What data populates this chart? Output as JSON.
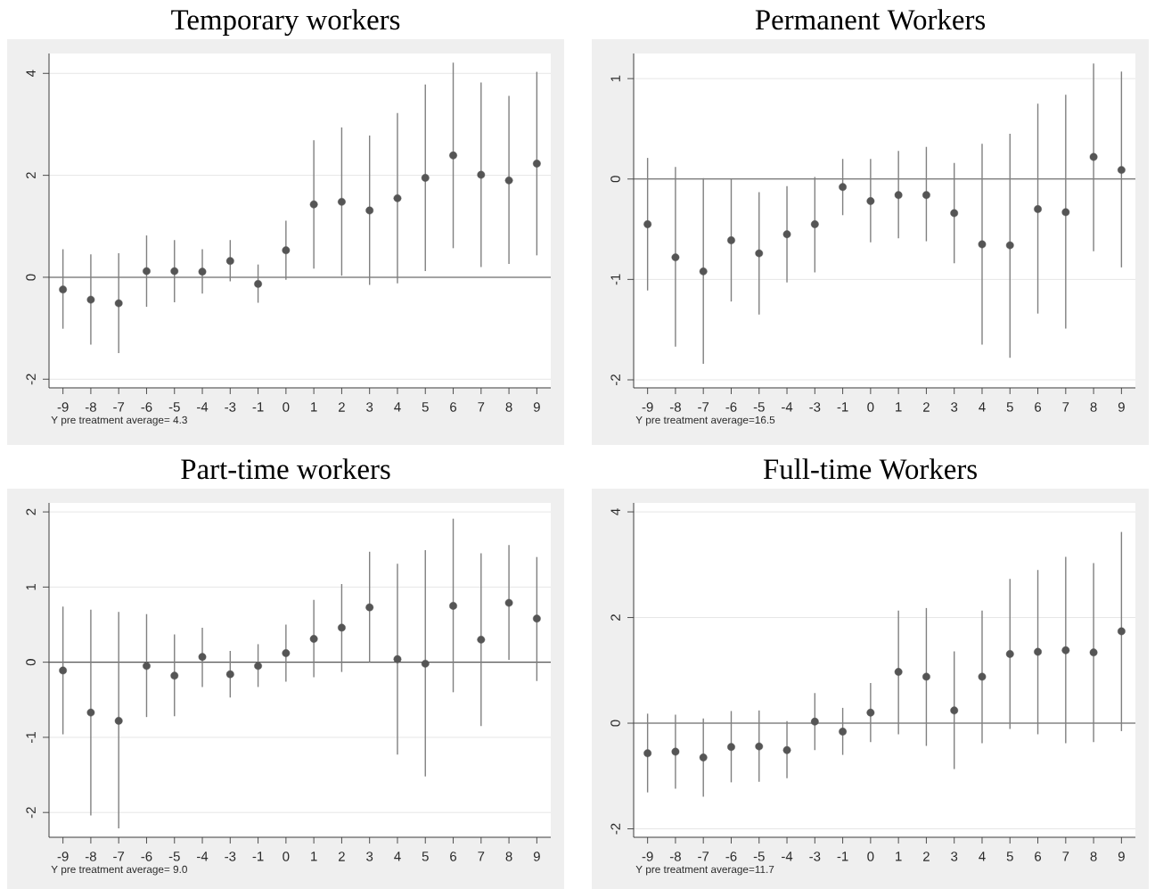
{
  "chart_data": [
    {
      "type": "scatter",
      "title": "Temporary workers",
      "categories": [
        "-9",
        "-8",
        "-7",
        "-6",
        "-5",
        "-4",
        "-3",
        "-1",
        "0",
        "1",
        "2",
        "3",
        "4",
        "5",
        "6",
        "7",
        "8",
        "9"
      ],
      "values": [
        -0.24,
        -0.44,
        -0.51,
        0.12,
        0.12,
        0.11,
        0.32,
        -0.13,
        0.53,
        1.43,
        1.48,
        1.31,
        1.55,
        1.95,
        2.39,
        2.01,
        1.9,
        2.23
      ],
      "errors": [
        [
          -1.01,
          0.55
        ],
        [
          -1.32,
          0.45
        ],
        [
          -1.49,
          0.47
        ],
        [
          -0.58,
          0.82
        ],
        [
          -0.49,
          0.73
        ],
        [
          -0.32,
          0.55
        ],
        [
          -0.08,
          0.73
        ],
        [
          -0.5,
          0.25
        ],
        [
          -0.05,
          1.11
        ],
        [
          0.17,
          2.69
        ],
        [
          0.03,
          2.94
        ],
        [
          -0.15,
          2.78
        ],
        [
          -0.12,
          3.22
        ],
        [
          0.12,
          3.78
        ],
        [
          0.57,
          4.21
        ],
        [
          0.2,
          3.82
        ],
        [
          0.26,
          3.56
        ],
        [
          0.43,
          4.03
        ]
      ],
      "color": "#555555",
      "marker": "circle",
      "ylim": [
        -2.17,
        4.39
      ],
      "yticks": [
        -2,
        0,
        2,
        4
      ],
      "grid": "y",
      "ref_lines": [
        {
          "axis": "y",
          "value": 0,
          "color": "#555555"
        }
      ],
      "annotations": [
        "Y pre treatment average= 4.3"
      ]
    },
    {
      "type": "scatter",
      "title": "Permanent Workers",
      "categories": [
        "-9",
        "-8",
        "-7",
        "-6",
        "-5",
        "-4",
        "-3",
        "-1",
        "0",
        "1",
        "2",
        "3",
        "4",
        "5",
        "6",
        "7",
        "8",
        "9"
      ],
      "values": [
        -0.45,
        -0.78,
        -0.92,
        -0.61,
        -0.74,
        -0.55,
        -0.45,
        -0.08,
        -0.22,
        -0.16,
        -0.16,
        -0.34,
        -0.65,
        -0.66,
        -0.3,
        -0.33,
        0.22,
        0.09
      ],
      "errors": [
        [
          -1.11,
          0.21
        ],
        [
          -1.67,
          0.12
        ],
        [
          -1.84,
          0.01
        ],
        [
          -1.22,
          0.0
        ],
        [
          -1.35,
          -0.13
        ],
        [
          -1.03,
          -0.07
        ],
        [
          -0.93,
          0.02
        ],
        [
          -0.36,
          0.2
        ],
        [
          -0.63,
          0.2
        ],
        [
          -0.59,
          0.28
        ],
        [
          -0.62,
          0.32
        ],
        [
          -0.84,
          0.16
        ],
        [
          -1.65,
          0.35
        ],
        [
          -1.78,
          0.45
        ],
        [
          -1.34,
          0.75
        ],
        [
          -1.49,
          0.84
        ],
        [
          -0.72,
          1.15
        ],
        [
          -0.88,
          1.07
        ]
      ],
      "color": "#555555",
      "marker": "circle",
      "ylim": [
        -2.08,
        1.25
      ],
      "yticks": [
        -2,
        -1,
        0,
        1
      ],
      "grid": "y",
      "ref_lines": [
        {
          "axis": "y",
          "value": 0,
          "color": "#555555"
        }
      ],
      "annotations": [
        "Y pre treatment average=16.5"
      ]
    },
    {
      "type": "scatter",
      "title": "Part-time workers",
      "categories": [
        "-9",
        "-8",
        "-7",
        "-6",
        "-5",
        "-4",
        "-3",
        "-1",
        "0",
        "1",
        "2",
        "3",
        "4",
        "5",
        "6",
        "7",
        "8",
        "9"
      ],
      "values": [
        -0.11,
        -0.67,
        -0.78,
        -0.05,
        -0.18,
        0.07,
        -0.16,
        -0.05,
        0.12,
        0.31,
        0.46,
        0.73,
        0.04,
        -0.02,
        0.75,
        0.3,
        0.79,
        0.58
      ],
      "errors": [
        [
          -0.96,
          0.74
        ],
        [
          -2.04,
          0.7
        ],
        [
          -2.21,
          0.67
        ],
        [
          -0.73,
          0.64
        ],
        [
          -0.72,
          0.37
        ],
        [
          -0.33,
          0.46
        ],
        [
          -0.47,
          0.15
        ],
        [
          -0.33,
          0.24
        ],
        [
          -0.26,
          0.5
        ],
        [
          -0.2,
          0.83
        ],
        [
          -0.13,
          1.04
        ],
        [
          0.0,
          1.47
        ],
        [
          -1.23,
          1.31
        ],
        [
          -1.52,
          1.49
        ],
        [
          -0.4,
          1.91
        ],
        [
          -0.85,
          1.45
        ],
        [
          0.03,
          1.56
        ],
        [
          -0.25,
          1.4
        ]
      ],
      "color": "#555555",
      "marker": "circle",
      "ylim": [
        -2.33,
        2.12
      ],
      "yticks": [
        -2,
        -1,
        0,
        1,
        2
      ],
      "grid": "y",
      "ref_lines": [
        {
          "axis": "y",
          "value": 0,
          "color": "#555555"
        }
      ],
      "annotations": [
        "Y pre treatment average= 9.0"
      ]
    },
    {
      "type": "scatter",
      "title": "Full-time Workers",
      "categories": [
        "-9",
        "-8",
        "-7",
        "-6",
        "-5",
        "-4",
        "-3",
        "-1",
        "0",
        "1",
        "2",
        "3",
        "4",
        "5",
        "6",
        "7",
        "8",
        "9"
      ],
      "values": [
        -0.57,
        -0.54,
        -0.65,
        -0.45,
        -0.44,
        -0.51,
        0.03,
        -0.16,
        0.2,
        0.97,
        0.88,
        0.24,
        0.88,
        1.31,
        1.35,
        1.38,
        1.34,
        1.74
      ],
      "errors": [
        [
          -1.31,
          0.18
        ],
        [
          -1.24,
          0.16
        ],
        [
          -1.39,
          0.09
        ],
        [
          -1.12,
          0.23
        ],
        [
          -1.11,
          0.24
        ],
        [
          -1.04,
          0.04
        ],
        [
          -0.51,
          0.57
        ],
        [
          -0.6,
          0.29
        ],
        [
          -0.36,
          0.76
        ],
        [
          -0.21,
          2.13
        ],
        [
          -0.43,
          2.18
        ],
        [
          -0.87,
          1.36
        ],
        [
          -0.38,
          2.13
        ],
        [
          -0.11,
          2.73
        ],
        [
          -0.21,
          2.9
        ],
        [
          -0.38,
          3.15
        ],
        [
          -0.36,
          3.03
        ],
        [
          -0.15,
          3.62
        ]
      ],
      "color": "#555555",
      "marker": "circle",
      "ylim": [
        -2.16,
        4.17
      ],
      "yticks": [
        -2,
        0,
        2,
        4
      ],
      "grid": "y",
      "ref_lines": [
        {
          "axis": "y",
          "value": 0,
          "color": "#555555"
        }
      ],
      "annotations": [
        "Y pre treatment average=11.7"
      ]
    }
  ]
}
